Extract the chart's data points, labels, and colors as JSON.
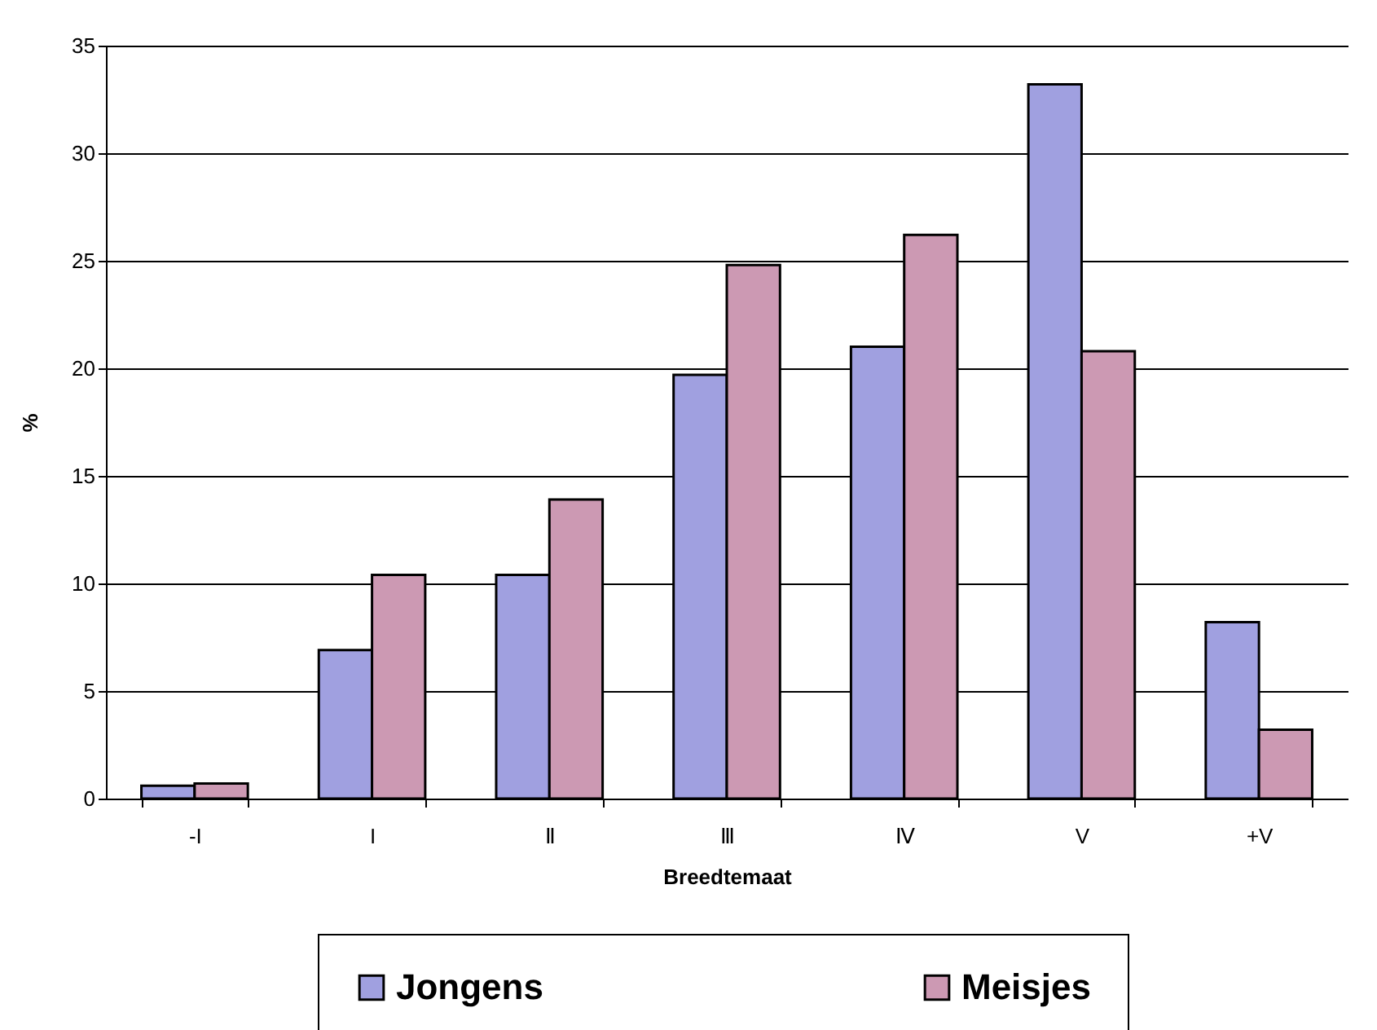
{
  "chart_data": {
    "type": "bar",
    "xlabel": "Breedtemaat",
    "ylabel": "%",
    "categories": [
      "-I",
      "I",
      "Ⅱ",
      "Ⅲ",
      "Ⅳ",
      "V",
      "+V"
    ],
    "series": [
      {
        "name": "Jongens",
        "color": "#a0a0e0",
        "values": [
          0.6,
          6.9,
          10.4,
          19.7,
          21.0,
          33.2,
          8.2
        ]
      },
      {
        "name": "Meisjes",
        "color": "#cc99b3",
        "values": [
          0.7,
          10.4,
          13.9,
          24.8,
          26.2,
          20.8,
          3.2
        ]
      }
    ],
    "ylim": [
      0,
      35
    ],
    "yticks": [
      0,
      5,
      10,
      15,
      20,
      25,
      30,
      35
    ],
    "grid": "y",
    "legend": "bottom"
  }
}
